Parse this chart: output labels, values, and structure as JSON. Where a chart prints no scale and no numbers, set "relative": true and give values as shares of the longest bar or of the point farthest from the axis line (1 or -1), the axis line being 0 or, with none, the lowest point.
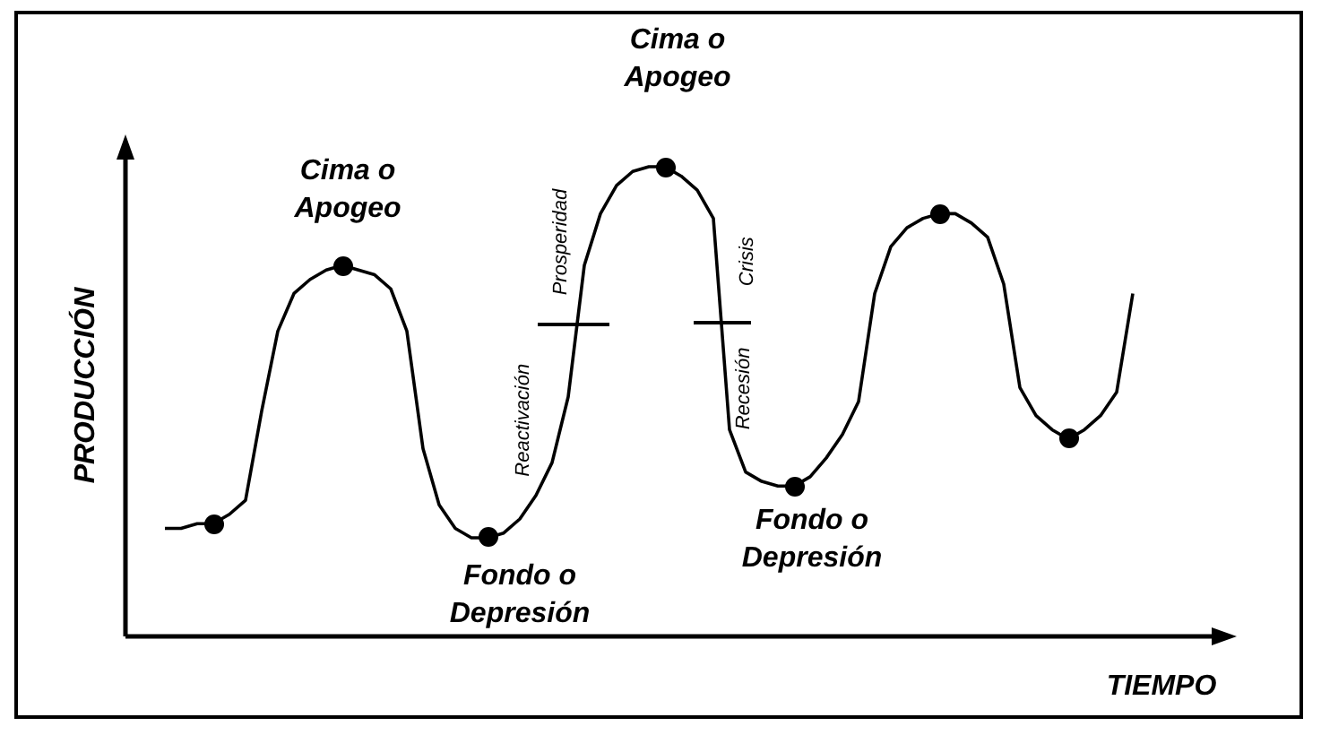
{
  "chart_data": {
    "type": "line",
    "relative": true,
    "xlabel": "TIEMPO",
    "ylabel": "PRODUCCIÓN",
    "categories": [
      null,
      null,
      null,
      null,
      null,
      null,
      null,
      null,
      null,
      null,
      null,
      null,
      null,
      null,
      null,
      null,
      null,
      null,
      null,
      null,
      null,
      null,
      null,
      null,
      null,
      null,
      null,
      null,
      null,
      null,
      null,
      null,
      null,
      null,
      null,
      null,
      null,
      null,
      null,
      null,
      null,
      null,
      null,
      null,
      null,
      null,
      null,
      null,
      null,
      null,
      null,
      null,
      null,
      null,
      null,
      null,
      null,
      null,
      null,
      null,
      null
    ],
    "series": [
      {
        "type": "line",
        "color": "#000000",
        "marker": "none",
        "line_style": "solid",
        "values": [
          0.23,
          0.23,
          0.24,
          0.24,
          0.26,
          0.29,
          0.48,
          0.65,
          0.73,
          0.76,
          0.78,
          0.79,
          0.78,
          0.77,
          0.74,
          0.65,
          0.4,
          0.28,
          0.23,
          0.21,
          0.21,
          0.22,
          0.25,
          0.3,
          0.37,
          0.51,
          0.79,
          0.9,
          0.96,
          0.99,
          1,
          1,
          0.98,
          0.95,
          0.89,
          0.44,
          0.35,
          0.33,
          0.32,
          0.32,
          0.34,
          0.38,
          0.43,
          0.5,
          0.73,
          0.83,
          0.87,
          0.89,
          0.9,
          0.9,
          0.88,
          0.85,
          0.75,
          0.53,
          0.47,
          0.44,
          0.42,
          0.44,
          0.47,
          0.52,
          0.73
        ]
      }
    ],
    "annotations": [
      "Cima o Apogeo",
      "Fondo o Depresión",
      "Cima o Apogeo",
      "Fondo o Depresión",
      "Reactivación",
      "Prosperidad",
      "Crisis",
      "Recesión"
    ]
  }
}
